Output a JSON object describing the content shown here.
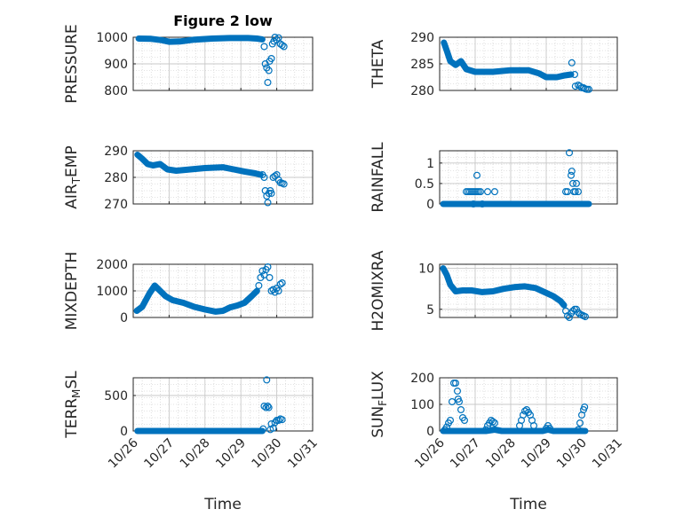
{
  "figure": {
    "title": "Figure 2 low"
  },
  "x_axis": {
    "label": "Time",
    "ticks": [
      "10/26",
      "10/27",
      "10/28",
      "10/29",
      "10/30",
      "10/31"
    ],
    "range": [
      0,
      5
    ]
  },
  "colors": {
    "marker": "#0072BD",
    "axes": "#262626",
    "grid": "#c8c8c8"
  },
  "chart_data": [
    {
      "type": "scatter",
      "title": "Figure 2 low",
      "ylabel": "PRESSURE",
      "ylabel_sub": "",
      "ylabel_tail": "",
      "ylim": [
        800,
        1000
      ],
      "yticks": [
        800,
        900,
        1000
      ],
      "yticklabels": [
        "800",
        "900",
        "1000"
      ],
      "grid": true,
      "show_xticklabels": false,
      "lines": [
        [
          [
            0.15,
            995
          ],
          [
            0.5,
            994
          ],
          [
            0.8,
            989
          ],
          [
            1.0,
            983
          ],
          [
            1.3,
            984
          ],
          [
            1.7,
            991
          ],
          [
            2.2,
            995
          ],
          [
            2.7,
            997
          ],
          [
            3.2,
            997
          ],
          [
            3.45,
            995
          ],
          [
            3.6,
            992
          ]
        ]
      ],
      "points": [
        [
          3.65,
          965
        ],
        [
          3.68,
          900
        ],
        [
          3.72,
          885
        ],
        [
          3.75,
          830
        ],
        [
          3.78,
          875
        ],
        [
          3.8,
          910
        ],
        [
          3.85,
          920
        ],
        [
          3.88,
          975
        ],
        [
          3.92,
          985
        ],
        [
          3.95,
          1000
        ],
        [
          4.0,
          990
        ],
        [
          4.05,
          998
        ],
        [
          4.1,
          975
        ],
        [
          4.15,
          970
        ],
        [
          4.2,
          965
        ]
      ]
    },
    {
      "type": "scatter",
      "title": "",
      "ylabel": "THETA",
      "ylabel_sub": "",
      "ylabel_tail": "",
      "ylim": [
        280,
        290
      ],
      "yticks": [
        280,
        285,
        290
      ],
      "yticklabels": [
        "280",
        "285",
        "290"
      ],
      "grid": true,
      "show_xticklabels": false,
      "lines": [
        [
          [
            0.12,
            289
          ],
          [
            0.2,
            287.5
          ],
          [
            0.3,
            285.5
          ],
          [
            0.45,
            284.8
          ],
          [
            0.6,
            285.5
          ],
          [
            0.75,
            284
          ],
          [
            1.0,
            283.5
          ],
          [
            1.5,
            283.5
          ],
          [
            2.0,
            283.8
          ],
          [
            2.5,
            283.8
          ],
          [
            2.8,
            283.2
          ],
          [
            3.0,
            282.5
          ],
          [
            3.3,
            282.5
          ],
          [
            3.5,
            282.8
          ],
          [
            3.7,
            283
          ]
        ]
      ],
      "points": [
        [
          3.72,
          285.2
        ],
        [
          3.8,
          283
        ],
        [
          3.82,
          280.8
        ],
        [
          3.9,
          281
        ],
        [
          3.95,
          280.8
        ],
        [
          4.0,
          280.5
        ],
        [
          4.05,
          280.5
        ],
        [
          4.1,
          280.3
        ],
        [
          4.15,
          280.2
        ],
        [
          4.2,
          280.2
        ]
      ]
    },
    {
      "type": "scatter",
      "title": "",
      "ylabel": "AIR",
      "ylabel_sub": "T",
      "ylabel_tail": "EMP",
      "ylim": [
        270,
        290
      ],
      "yticks": [
        270,
        280,
        290
      ],
      "yticklabels": [
        "270",
        "280",
        "290"
      ],
      "grid": true,
      "show_xticklabels": false,
      "lines": [
        [
          [
            0.12,
            288.5
          ],
          [
            0.25,
            287
          ],
          [
            0.4,
            285
          ],
          [
            0.55,
            284.5
          ],
          [
            0.75,
            285
          ],
          [
            0.95,
            283
          ],
          [
            1.2,
            282.5
          ],
          [
            1.6,
            283
          ],
          [
            2.0,
            283.5
          ],
          [
            2.5,
            283.8
          ],
          [
            2.8,
            283
          ],
          [
            3.1,
            282.2
          ],
          [
            3.4,
            281.5
          ],
          [
            3.55,
            281
          ]
        ]
      ],
      "points": [
        [
          3.6,
          281
        ],
        [
          3.65,
          280
        ],
        [
          3.68,
          275
        ],
        [
          3.72,
          273
        ],
        [
          3.75,
          270.5
        ],
        [
          3.78,
          274
        ],
        [
          3.82,
          275
        ],
        [
          3.85,
          274
        ],
        [
          3.9,
          280
        ],
        [
          3.95,
          280.5
        ],
        [
          4.0,
          281
        ],
        [
          4.05,
          279
        ],
        [
          4.1,
          278
        ],
        [
          4.15,
          277.8
        ],
        [
          4.2,
          277.5
        ]
      ]
    },
    {
      "type": "scatter",
      "title": "",
      "ylabel": "RAINFALL",
      "ylabel_sub": "",
      "ylabel_tail": "",
      "ylim": [
        0,
        1.3
      ],
      "yticks": [
        0,
        0.5,
        1
      ],
      "yticklabels": [
        "0",
        "0.5",
        "1"
      ],
      "grid": true,
      "show_xticklabels": false,
      "lines": [
        [
          [
            0.1,
            0
          ],
          [
            4.2,
            0
          ]
        ]
      ],
      "points": [
        [
          0.75,
          0.3
        ],
        [
          0.8,
          0.3
        ],
        [
          0.85,
          0.3
        ],
        [
          0.9,
          0.3
        ],
        [
          0.95,
          0.3
        ],
        [
          1.0,
          0.3
        ],
        [
          1.05,
          0.3
        ],
        [
          1.1,
          0.3
        ],
        [
          0.95,
          0.0
        ],
        [
          1.05,
          0.7
        ],
        [
          1.15,
          0.3
        ],
        [
          1.2,
          0.0
        ],
        [
          1.35,
          0.3
        ],
        [
          1.55,
          0.3
        ],
        [
          3.55,
          0.3
        ],
        [
          3.6,
          0.3
        ],
        [
          3.65,
          1.25
        ],
        [
          3.7,
          0.7
        ],
        [
          3.72,
          0.8
        ],
        [
          3.75,
          0.5
        ],
        [
          3.78,
          0.3
        ],
        [
          3.82,
          0.3
        ],
        [
          3.85,
          0.5
        ],
        [
          3.9,
          0.3
        ]
      ]
    },
    {
      "type": "scatter",
      "title": "",
      "ylabel": "MIXDEPTH",
      "ylabel_sub": "",
      "ylabel_tail": "",
      "ylim": [
        0,
        2000
      ],
      "yticks": [
        0,
        1000,
        2000
      ],
      "yticklabels": [
        "0",
        "1000",
        "2000"
      ],
      "grid": true,
      "show_xticklabels": false,
      "lines": [
        [
          [
            0.1,
            250
          ],
          [
            0.25,
            400
          ],
          [
            0.45,
            900
          ],
          [
            0.6,
            1200
          ],
          [
            0.75,
            1000
          ],
          [
            0.9,
            800
          ],
          [
            1.1,
            650
          ],
          [
            1.4,
            550
          ],
          [
            1.7,
            400
          ],
          [
            2.0,
            300
          ],
          [
            2.3,
            220
          ],
          [
            2.5,
            250
          ],
          [
            2.7,
            380
          ],
          [
            2.9,
            450
          ],
          [
            3.1,
            550
          ],
          [
            3.3,
            800
          ],
          [
            3.45,
            1000
          ]
        ]
      ],
      "points": [
        [
          3.5,
          1200
        ],
        [
          3.55,
          1500
        ],
        [
          3.6,
          1750
        ],
        [
          3.65,
          1600
        ],
        [
          3.7,
          1800
        ],
        [
          3.75,
          1900
        ],
        [
          3.8,
          1500
        ],
        [
          3.85,
          1000
        ],
        [
          3.9,
          1050
        ],
        [
          3.95,
          950
        ],
        [
          4.0,
          1100
        ],
        [
          4.05,
          1000
        ],
        [
          4.1,
          1250
        ],
        [
          4.15,
          1300
        ]
      ]
    },
    {
      "type": "scatter",
      "title": "",
      "ylabel": "H2OMIXRA",
      "ylabel_sub": "",
      "ylabel_tail": "",
      "ylim": [
        4,
        10.5
      ],
      "yticks": [
        5,
        10
      ],
      "yticklabels": [
        "5",
        "10"
      ],
      "grid": true,
      "show_xticklabels": false,
      "lines": [
        [
          [
            0.1,
            10
          ],
          [
            0.2,
            9.2
          ],
          [
            0.3,
            8
          ],
          [
            0.45,
            7.2
          ],
          [
            0.65,
            7.3
          ],
          [
            0.9,
            7.3
          ],
          [
            1.2,
            7.1
          ],
          [
            1.5,
            7.2
          ],
          [
            1.8,
            7.5
          ],
          [
            2.1,
            7.7
          ],
          [
            2.4,
            7.8
          ],
          [
            2.7,
            7.6
          ],
          [
            3.0,
            7.0
          ],
          [
            3.2,
            6.6
          ],
          [
            3.4,
            6.0
          ],
          [
            3.5,
            5.5
          ]
        ]
      ],
      "points": [
        [
          3.55,
          4.8
        ],
        [
          3.6,
          4.2
        ],
        [
          3.65,
          4.0
        ],
        [
          3.7,
          4.5
        ],
        [
          3.75,
          4.8
        ],
        [
          3.8,
          5.0
        ],
        [
          3.85,
          5.0
        ],
        [
          3.9,
          4.6
        ],
        [
          3.95,
          4.4
        ],
        [
          4.0,
          4.3
        ],
        [
          4.05,
          4.2
        ],
        [
          4.1,
          4.1
        ]
      ]
    },
    {
      "type": "scatter",
      "title": "",
      "ylabel": "TERR",
      "ylabel_sub": "M",
      "ylabel_tail": "SL",
      "ylim": [
        0,
        750
      ],
      "yticks": [
        0,
        500
      ],
      "yticklabels": [
        "0",
        "500"
      ],
      "grid": true,
      "show_xticklabels": true,
      "lines": [
        [
          [
            0.12,
            0
          ],
          [
            3.6,
            0
          ]
        ]
      ],
      "points": [
        [
          3.62,
          30
        ],
        [
          3.65,
          350
        ],
        [
          3.7,
          330
        ],
        [
          3.72,
          720
        ],
        [
          3.75,
          350
        ],
        [
          3.78,
          330
        ],
        [
          3.82,
          20
        ],
        [
          3.85,
          100
        ],
        [
          3.9,
          40
        ],
        [
          3.95,
          120
        ],
        [
          4.0,
          150
        ],
        [
          4.05,
          150
        ],
        [
          4.1,
          170
        ],
        [
          4.15,
          160
        ]
      ]
    },
    {
      "type": "scatter",
      "title": "",
      "ylabel": "SUN",
      "ylabel_sub": "F",
      "ylabel_tail": "LUX",
      "ylim": [
        0,
        200
      ],
      "yticks": [
        0,
        100,
        200
      ],
      "yticklabels": [
        "0",
        "100",
        "200"
      ],
      "grid": true,
      "show_xticklabels": true,
      "lines": [
        [
          [
            0.1,
            0
          ],
          [
            0.25,
            0
          ],
          [
            1.0,
            0
          ],
          [
            1.3,
            0
          ],
          [
            1.55,
            5
          ],
          [
            1.75,
            0
          ],
          [
            2.1,
            0
          ],
          [
            2.6,
            0
          ],
          [
            2.9,
            0
          ],
          [
            3.05,
            5
          ],
          [
            3.2,
            0
          ],
          [
            3.6,
            0
          ],
          [
            4.1,
            0
          ]
        ]
      ],
      "points": [
        [
          0.15,
          5
        ],
        [
          0.2,
          15
        ],
        [
          0.25,
          30
        ],
        [
          0.3,
          40
        ],
        [
          0.35,
          110
        ],
        [
          0.4,
          180
        ],
        [
          0.45,
          180
        ],
        [
          0.5,
          150
        ],
        [
          0.52,
          120
        ],
        [
          0.55,
          110
        ],
        [
          0.6,
          80
        ],
        [
          0.65,
          50
        ],
        [
          0.7,
          40
        ],
        [
          1.3,
          5
        ],
        [
          1.35,
          20
        ],
        [
          1.4,
          30
        ],
        [
          1.45,
          40
        ],
        [
          1.5,
          35
        ],
        [
          1.55,
          30
        ],
        [
          2.25,
          20
        ],
        [
          2.3,
          40
        ],
        [
          2.35,
          60
        ],
        [
          2.4,
          75
        ],
        [
          2.45,
          80
        ],
        [
          2.5,
          70
        ],
        [
          2.55,
          60
        ],
        [
          2.6,
          40
        ],
        [
          2.65,
          20
        ],
        [
          3.0,
          10
        ],
        [
          3.05,
          20
        ],
        [
          3.1,
          10
        ],
        [
          3.9,
          5
        ],
        [
          3.95,
          30
        ],
        [
          4.0,
          60
        ],
        [
          4.05,
          80
        ],
        [
          4.08,
          90
        ]
      ]
    }
  ]
}
